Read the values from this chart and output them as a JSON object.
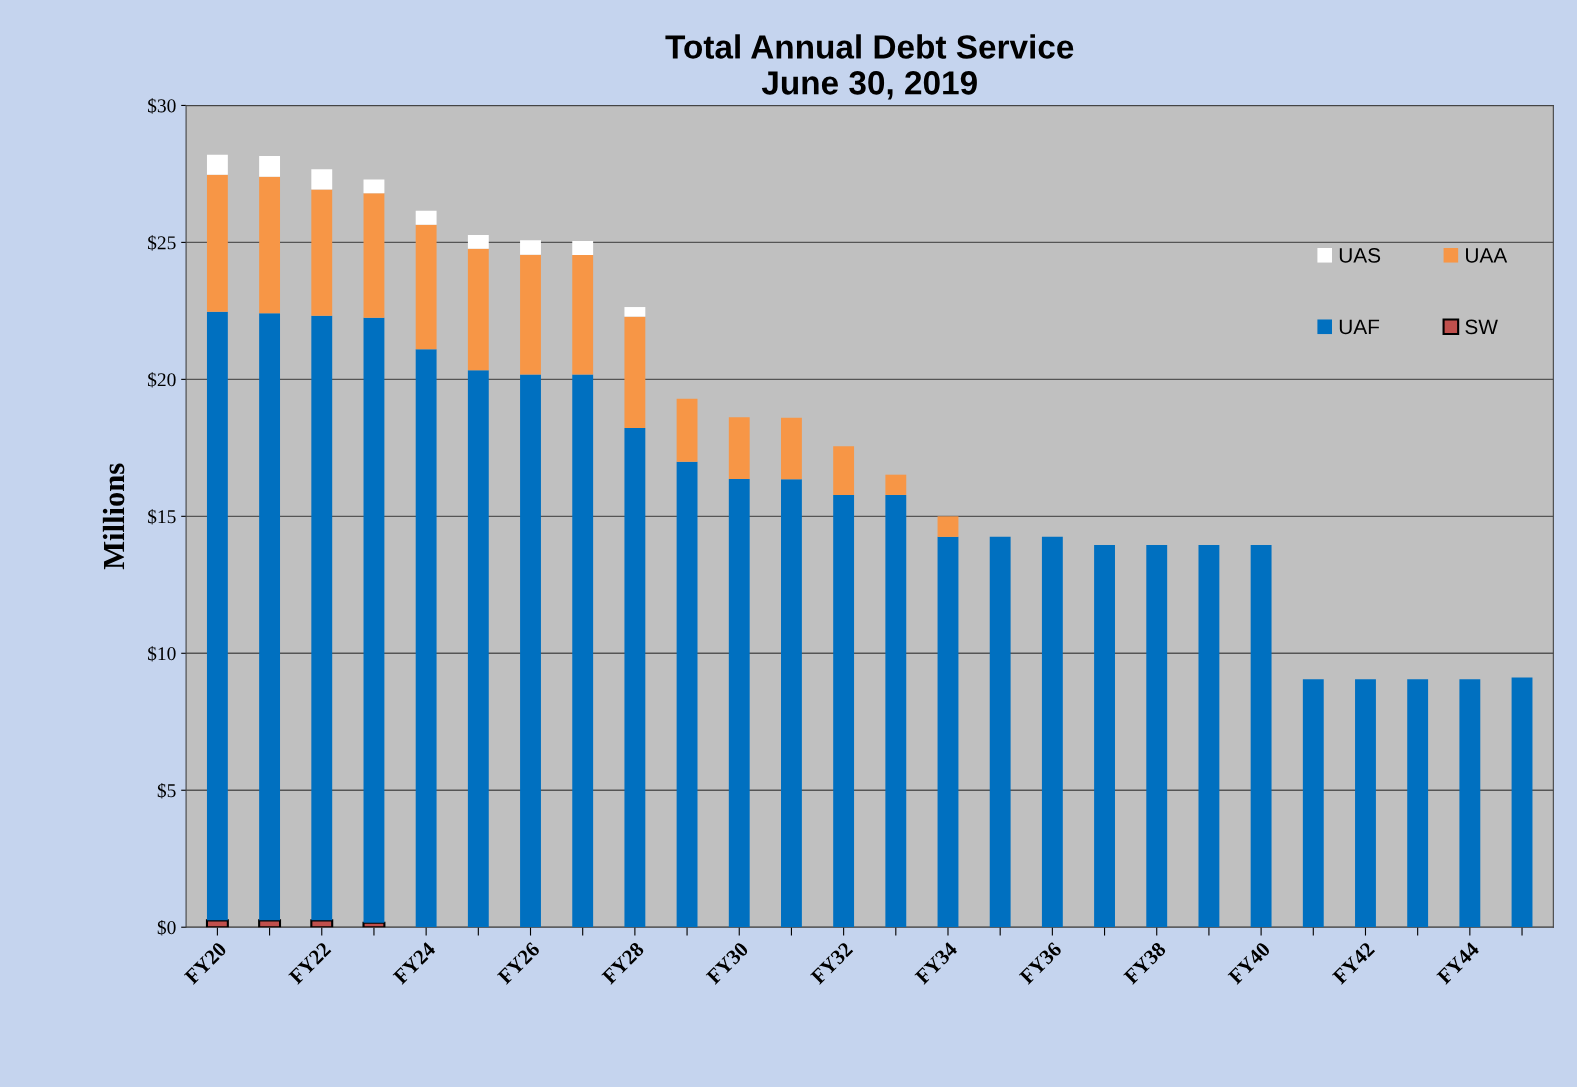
{
  "chart_data": {
    "type": "bar",
    "title": "Total Annual Debt Service\nJune 30, 2019",
    "ylabel": "Millions",
    "categories": [
      "FY20",
      null,
      "FY22",
      null,
      "FY24",
      null,
      "FY26",
      null,
      "FY28",
      null,
      "FY30",
      null,
      "FY32",
      null,
      "FY34",
      null,
      "FY36",
      null,
      "FY38",
      null,
      "FY40",
      null,
      "FY42",
      null,
      "FY44",
      null
    ],
    "stacked": true,
    "series": [
      {
        "name": "SW",
        "color": "#c0504d",
        "values": [
          0.25,
          0.25,
          0.25,
          0.16,
          null,
          null,
          null,
          null,
          null,
          null,
          null,
          null,
          null,
          null,
          null,
          null,
          null,
          null,
          null,
          null,
          null,
          null,
          null,
          null,
          null,
          null
        ]
      },
      {
        "name": "UAF",
        "color": "#0070c0",
        "values": [
          22.22,
          22.16,
          22.07,
          22.09,
          21.1,
          20.33,
          20.18,
          20.18,
          18.22,
          16.99,
          16.36,
          16.35,
          15.78,
          15.78,
          14.25,
          14.25,
          14.25,
          13.95,
          13.95,
          13.95,
          13.95,
          9.05,
          9.05,
          9.05,
          9.05,
          9.12
        ]
      },
      {
        "name": "UAA",
        "color": "#f79646",
        "values": [
          5.0,
          4.99,
          4.61,
          4.54,
          4.54,
          4.44,
          4.37,
          4.36,
          4.07,
          2.3,
          2.26,
          2.25,
          1.78,
          0.74,
          0.75,
          null,
          null,
          null,
          null,
          null,
          null,
          null,
          null,
          null,
          null,
          null
        ]
      },
      {
        "name": "UAS",
        "color": "#ffffff",
        "values": [
          0.73,
          0.75,
          0.74,
          0.51,
          0.52,
          0.5,
          0.53,
          0.51,
          0.35,
          null,
          null,
          null,
          null,
          null,
          null,
          null,
          null,
          null,
          null,
          null,
          null,
          null,
          null,
          null,
          null,
          null
        ]
      }
    ],
    "ylim": [
      0,
      30
    ],
    "yticks": [
      {
        "value": 0,
        "label": "$0"
      },
      {
        "value": 5,
        "label": "$5"
      },
      {
        "value": 10,
        "label": "$10"
      },
      {
        "value": 15,
        "label": "$15"
      },
      {
        "value": 20,
        "label": "$20"
      },
      {
        "value": 25,
        "label": "$25"
      },
      {
        "value": 30,
        "label": "$30"
      }
    ],
    "grid": "y",
    "legend": "top right"
  }
}
